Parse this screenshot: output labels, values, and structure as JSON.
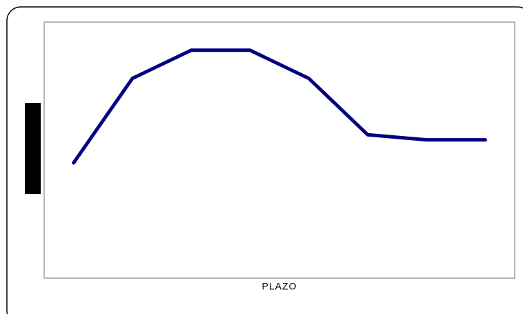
{
  "chart_data": {
    "type": "line",
    "x_label": "PLAZO",
    "categories": [
      null,
      null,
      null,
      null,
      null,
      null,
      null,
      null
    ],
    "series": [
      {
        "color": "#000080",
        "values": [
          45,
          78,
          89,
          89,
          78,
          56,
          54,
          54
        ]
      }
    ],
    "ylim": [
      0,
      100
    ]
  }
}
